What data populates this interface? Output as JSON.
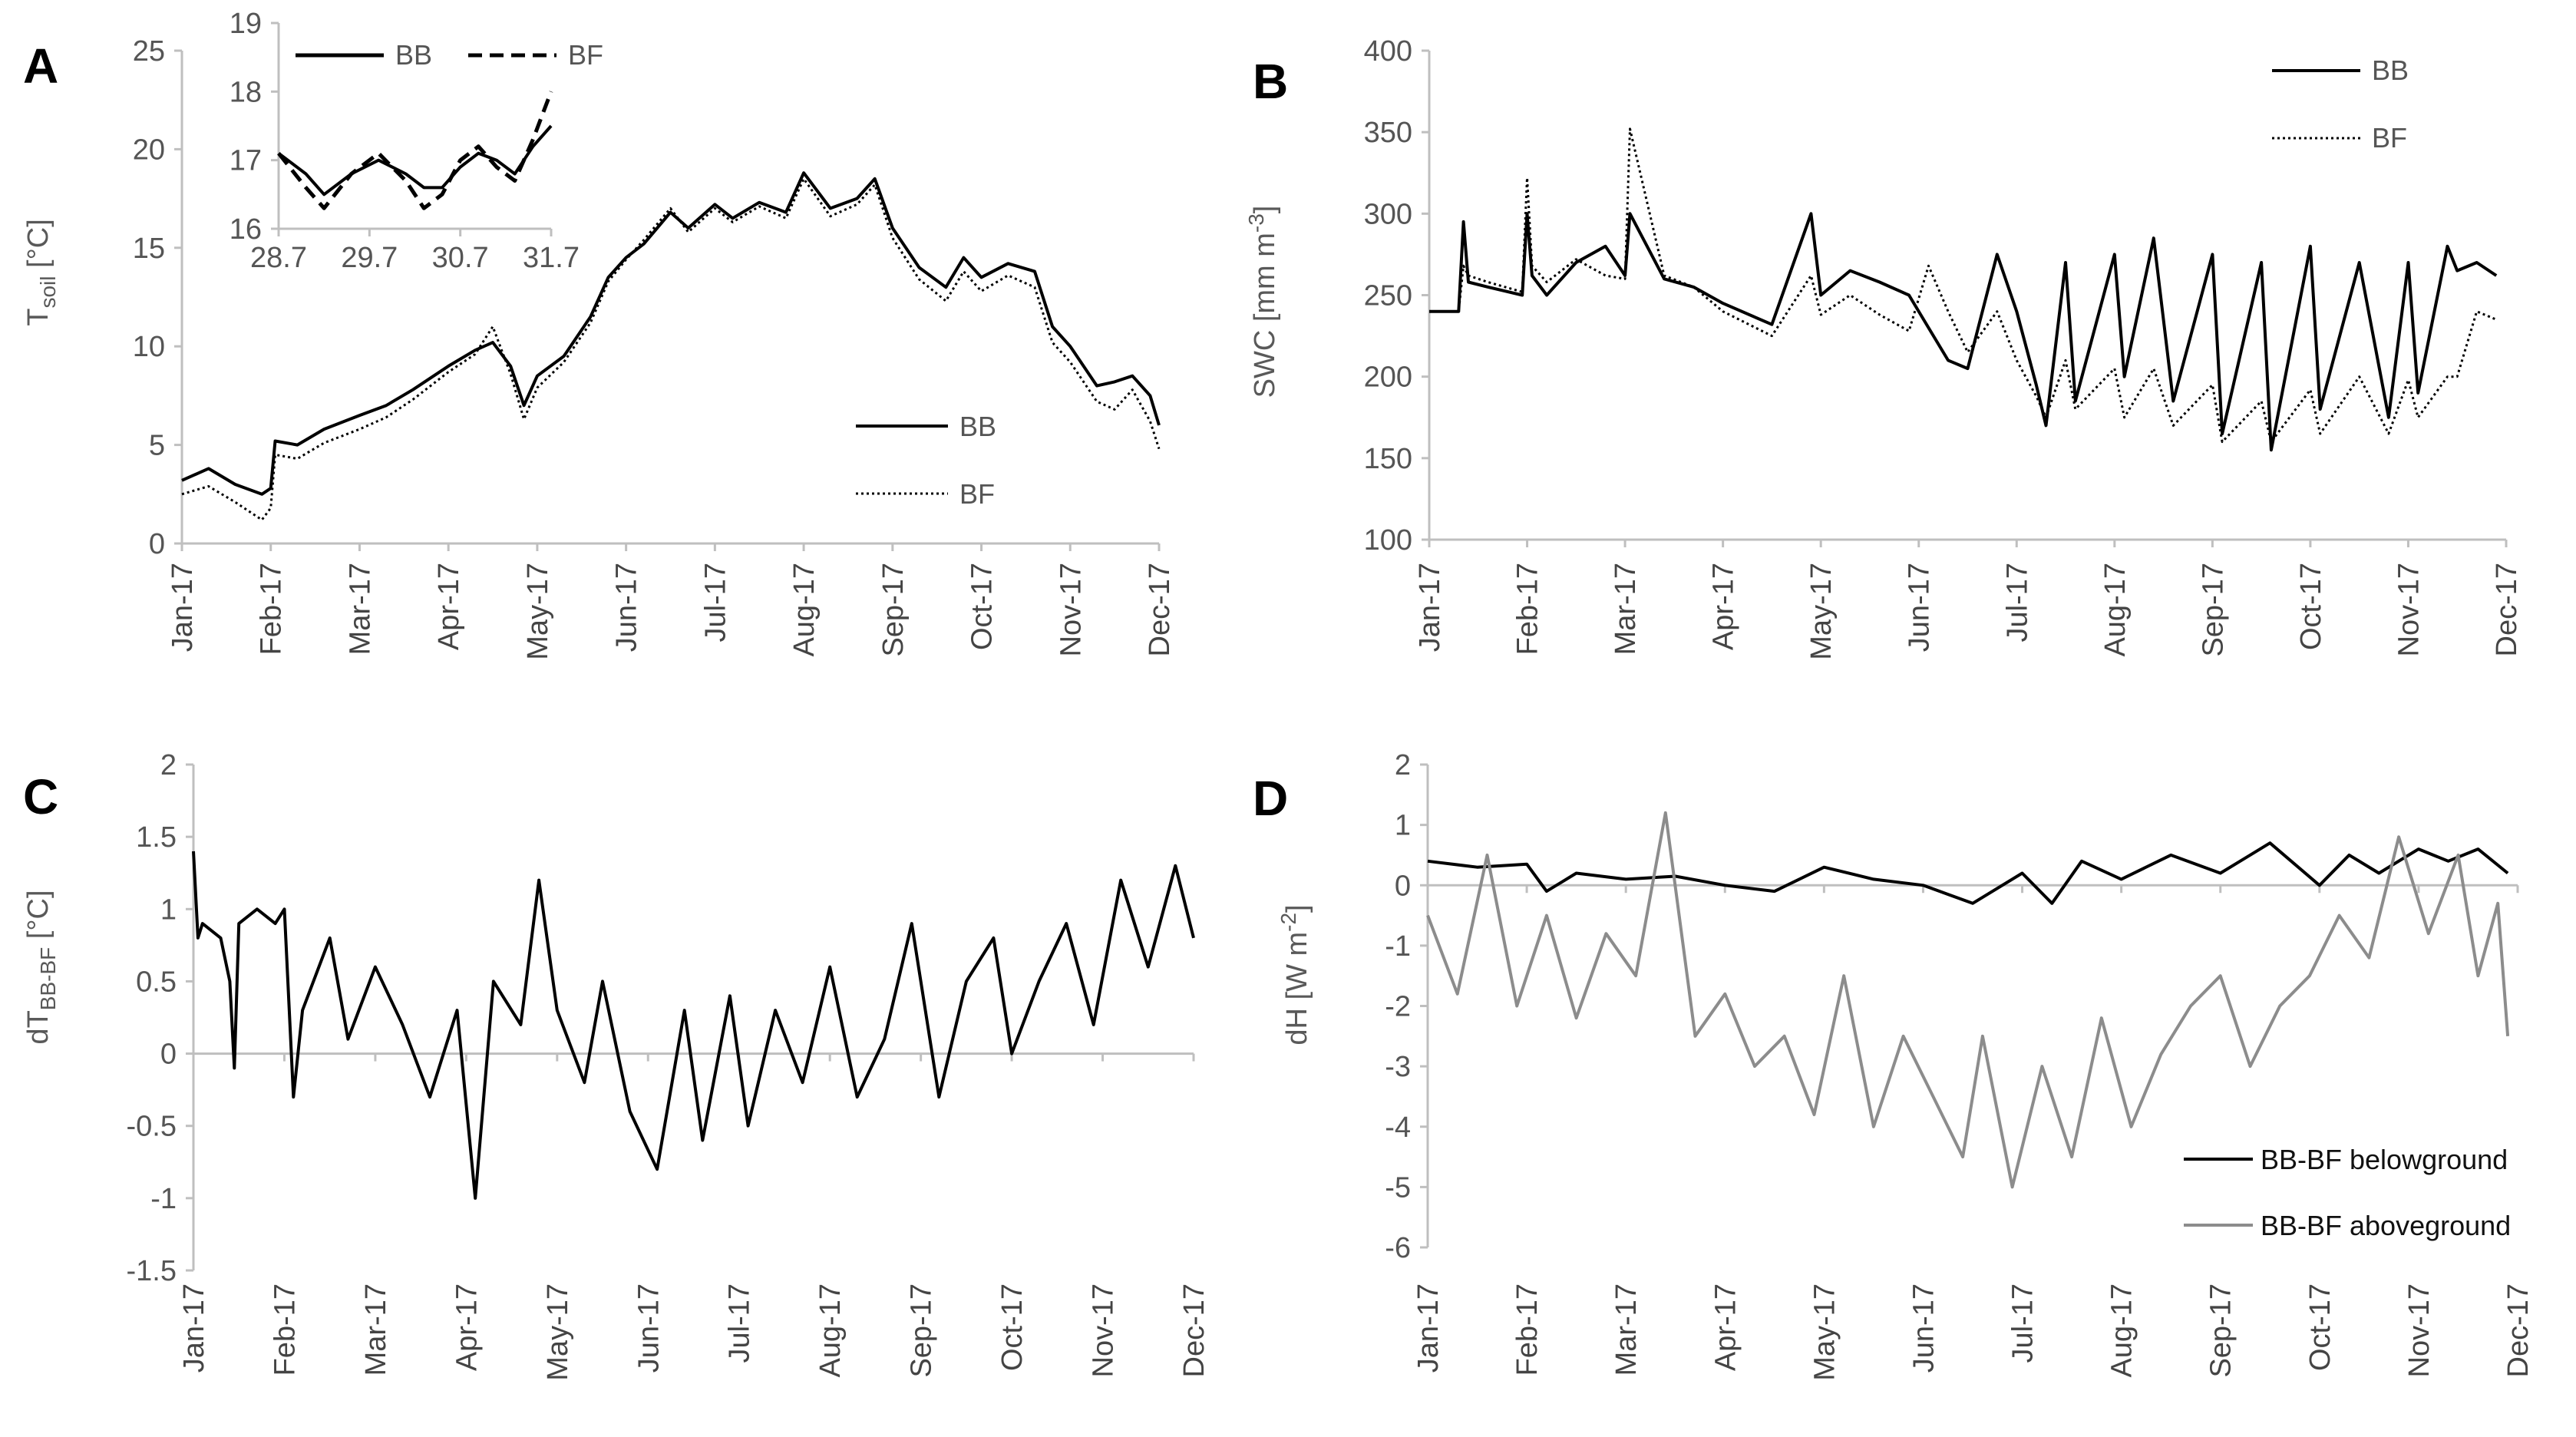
{
  "figure": {
    "panels": [
      "A",
      "B",
      "C",
      "D"
    ]
  },
  "chart_data": [
    {
      "panel": "A",
      "type": "line",
      "title": "",
      "xlabel": "",
      "ylabel_main": "T",
      "ylabel_sub": "soil",
      "ylabel_unit": " [°C]",
      "x_tick_labels": [
        "Jan-17",
        "Feb-17",
        "Mar-17",
        "Apr-17",
        "May-17",
        "Jun-17",
        "Jul-17",
        "Aug-17",
        "Sep-17",
        "Oct-17",
        "Nov-17",
        "Dec-17"
      ],
      "yticks": [
        0,
        5,
        10,
        15,
        20,
        25
      ],
      "ylim": [
        0,
        25
      ],
      "xlim": [
        0,
        11
      ],
      "legend": [
        "BB",
        "BF"
      ],
      "legend_position": "lower-right",
      "series": [
        {
          "name": "BB",
          "style": "solid",
          "x": [
            0,
            0.3,
            0.6,
            0.9,
            1.0,
            1.05,
            1.3,
            1.6,
            2.0,
            2.3,
            2.6,
            3.0,
            3.3,
            3.5,
            3.7,
            3.85,
            4.0,
            4.3,
            4.6,
            4.8,
            5.0,
            5.2,
            5.5,
            5.7,
            6.0,
            6.2,
            6.5,
            6.8,
            7.0,
            7.3,
            7.6,
            7.8,
            8.0,
            8.3,
            8.6,
            8.8,
            9.0,
            9.3,
            9.6,
            9.8,
            10.0,
            10.3,
            10.5,
            10.7,
            10.9,
            11.0
          ],
          "values": [
            3.2,
            3.8,
            3.0,
            2.5,
            2.8,
            5.2,
            5.0,
            5.8,
            6.5,
            7.0,
            7.8,
            9.0,
            9.8,
            10.2,
            9.0,
            7.0,
            8.5,
            9.5,
            11.5,
            13.5,
            14.5,
            15.2,
            16.8,
            16.0,
            17.2,
            16.5,
            17.3,
            16.8,
            18.8,
            17.0,
            17.5,
            18.5,
            16.0,
            14.0,
            13.0,
            14.5,
            13.5,
            14.2,
            13.8,
            11.0,
            10.0,
            8.0,
            8.2,
            8.5,
            7.5,
            6.0
          ]
        },
        {
          "name": "BF",
          "style": "dotted",
          "x": [
            0,
            0.3,
            0.6,
            0.9,
            1.0,
            1.05,
            1.3,
            1.6,
            2.0,
            2.3,
            2.6,
            3.0,
            3.3,
            3.5,
            3.7,
            3.85,
            4.0,
            4.3,
            4.6,
            4.8,
            5.0,
            5.2,
            5.5,
            5.7,
            6.0,
            6.2,
            6.5,
            6.8,
            7.0,
            7.3,
            7.6,
            7.8,
            8.0,
            8.3,
            8.6,
            8.8,
            9.0,
            9.3,
            9.6,
            9.8,
            10.0,
            10.3,
            10.5,
            10.7,
            10.9,
            11.0
          ],
          "values": [
            2.5,
            2.9,
            2.1,
            1.2,
            1.8,
            4.5,
            4.3,
            5.1,
            5.8,
            6.4,
            7.3,
            8.7,
            9.6,
            11.0,
            8.6,
            6.3,
            7.9,
            9.2,
            11.2,
            13.3,
            14.4,
            15.4,
            17.0,
            15.8,
            17.0,
            16.3,
            17.1,
            16.5,
            18.5,
            16.6,
            17.2,
            18.2,
            15.5,
            13.4,
            12.3,
            13.8,
            12.8,
            13.6,
            13.0,
            10.2,
            9.2,
            7.2,
            6.8,
            7.8,
            6.2,
            4.8
          ]
        }
      ],
      "inset": {
        "type": "line",
        "x_tick_labels": [
          "28.7",
          "29.7",
          "30.7",
          "31.7"
        ],
        "yticks": [
          16,
          17,
          18,
          19
        ],
        "ylim": [
          16,
          19
        ],
        "xlim": [
          28.7,
          31.7
        ],
        "legend": [
          "BB",
          "BF"
        ],
        "series": [
          {
            "name": "BB",
            "style": "solid",
            "x": [
              28.7,
              29.0,
              29.2,
              29.5,
              29.8,
              30.1,
              30.3,
              30.5,
              30.7,
              30.9,
              31.1,
              31.3,
              31.5,
              31.7
            ],
            "values": [
              17.1,
              16.8,
              16.5,
              16.8,
              17.0,
              16.8,
              16.6,
              16.6,
              16.9,
              17.1,
              17.0,
              16.8,
              17.2,
              17.5
            ]
          },
          {
            "name": "BF",
            "style": "dashed",
            "x": [
              28.7,
              29.0,
              29.2,
              29.5,
              29.8,
              30.1,
              30.3,
              30.5,
              30.7,
              30.9,
              31.1,
              31.3,
              31.5,
              31.7
            ],
            "values": [
              17.1,
              16.6,
              16.3,
              16.8,
              17.1,
              16.7,
              16.3,
              16.5,
              17.0,
              17.2,
              16.9,
              16.7,
              17.3,
              18.0
            ]
          }
        ]
      }
    },
    {
      "panel": "B",
      "type": "line",
      "title": "",
      "xlabel": "",
      "ylabel_main": "SWC [mm m",
      "ylabel_sup": "-3",
      "ylabel_tail": "]",
      "x_tick_labels": [
        "Jan-17",
        "Feb-17",
        "Mar-17",
        "Apr-17",
        "May-17",
        "Jun-17",
        "Jul-17",
        "Aug-17",
        "Sep-17",
        "Oct-17",
        "Nov-17",
        "Dec-17"
      ],
      "yticks": [
        100,
        150,
        200,
        250,
        300,
        350,
        400
      ],
      "ylim": [
        100,
        400
      ],
      "xlim": [
        0,
        11
      ],
      "legend": [
        "BB",
        "BF"
      ],
      "legend_position": "top-right",
      "series": [
        {
          "name": "BB",
          "style": "solid",
          "x": [
            0,
            0.3,
            0.35,
            0.4,
            0.6,
            0.95,
            1.0,
            1.05,
            1.2,
            1.5,
            1.8,
            2.0,
            2.05,
            2.4,
            2.7,
            3.0,
            3.5,
            3.9,
            4.0,
            4.3,
            4.6,
            4.9,
            5.1,
            5.3,
            5.5,
            5.8,
            6.0,
            6.2,
            6.3,
            6.5,
            6.6,
            7.0,
            7.1,
            7.4,
            7.6,
            8.0,
            8.1,
            8.5,
            8.6,
            9.0,
            9.1,
            9.5,
            9.8,
            10.0,
            10.1,
            10.4,
            10.5,
            10.7,
            10.9
          ],
          "values": [
            240,
            240,
            295,
            258,
            255,
            250,
            300,
            262,
            250,
            270,
            280,
            262,
            300,
            260,
            255,
            245,
            232,
            300,
            250,
            265,
            258,
            250,
            230,
            210,
            205,
            275,
            240,
            195,
            170,
            270,
            185,
            275,
            200,
            285,
            185,
            275,
            165,
            270,
            155,
            280,
            180,
            270,
            175,
            270,
            190,
            280,
            265,
            270,
            262
          ]
        },
        {
          "name": "BF",
          "style": "dotted",
          "x": [
            0,
            0.3,
            0.35,
            0.4,
            0.6,
            0.95,
            1.0,
            1.05,
            1.2,
            1.5,
            1.8,
            2.0,
            2.05,
            2.4,
            2.7,
            3.0,
            3.5,
            3.9,
            4.0,
            4.3,
            4.6,
            4.9,
            5.1,
            5.3,
            5.5,
            5.8,
            6.0,
            6.2,
            6.3,
            6.5,
            6.6,
            7.0,
            7.1,
            7.4,
            7.6,
            8.0,
            8.1,
            8.5,
            8.6,
            9.0,
            9.1,
            9.5,
            9.8,
            10.0,
            10.1,
            10.4,
            10.5,
            10.7,
            10.9
          ],
          "values": [
            240,
            240,
            268,
            262,
            258,
            252,
            322,
            268,
            258,
            272,
            262,
            260,
            352,
            262,
            255,
            240,
            225,
            262,
            238,
            250,
            238,
            228,
            268,
            240,
            215,
            240,
            210,
            188,
            175,
            210,
            180,
            205,
            175,
            205,
            170,
            195,
            160,
            185,
            160,
            192,
            165,
            200,
            165,
            198,
            175,
            200,
            200,
            240,
            235
          ]
        }
      ]
    },
    {
      "panel": "C",
      "type": "line",
      "title": "",
      "xlabel": "",
      "ylabel_main": "dT",
      "ylabel_sub": "BB-BF",
      "ylabel_unit": " [°C]",
      "x_tick_labels": [
        "Jan-17",
        "Feb-17",
        "Mar-17",
        "Apr-17",
        "May-17",
        "Jun-17",
        "Jul-17",
        "Aug-17",
        "Sep-17",
        "Oct-17",
        "Nov-17",
        "Dec-17"
      ],
      "yticks": [
        -1.5,
        -1,
        -0.5,
        0,
        0.5,
        1,
        1.5,
        2
      ],
      "ylim": [
        -1.5,
        2
      ],
      "xlim": [
        0,
        11
      ],
      "series": [
        {
          "name": "dT",
          "style": "solid",
          "x": [
            0,
            0.05,
            0.1,
            0.3,
            0.4,
            0.45,
            0.5,
            0.7,
            0.9,
            1.0,
            1.1,
            1.2,
            1.5,
            1.7,
            2.0,
            2.3,
            2.6,
            2.9,
            3.1,
            3.3,
            3.6,
            3.8,
            4.0,
            4.3,
            4.5,
            4.8,
            5.1,
            5.4,
            5.6,
            5.9,
            6.1,
            6.4,
            6.7,
            7.0,
            7.3,
            7.6,
            7.9,
            8.2,
            8.5,
            8.8,
            9.0,
            9.3,
            9.6,
            9.9,
            10.2,
            10.5,
            10.8,
            11.0
          ],
          "values": [
            1.4,
            0.8,
            0.9,
            0.8,
            0.5,
            -0.1,
            0.9,
            1.0,
            0.9,
            1.0,
            -0.3,
            0.3,
            0.8,
            0.1,
            0.6,
            0.2,
            -0.3,
            0.3,
            -1.0,
            0.5,
            0.2,
            1.2,
            0.3,
            -0.2,
            0.5,
            -0.4,
            -0.8,
            0.3,
            -0.6,
            0.4,
            -0.5,
            0.3,
            -0.2,
            0.6,
            -0.3,
            0.1,
            0.9,
            -0.3,
            0.5,
            0.8,
            0.0,
            0.5,
            0.9,
            0.2,
            1.2,
            0.6,
            1.3,
            0.8
          ]
        }
      ]
    },
    {
      "panel": "D",
      "type": "line",
      "title": "",
      "xlabel": "",
      "ylabel_main": "dH [W m",
      "ylabel_sup": "-2",
      "ylabel_tail": "]",
      "x_tick_labels": [
        "Jan-17",
        "Feb-17",
        "Mar-17",
        "Apr-17",
        "May-17",
        "Jun-17",
        "Jul-17",
        "Aug-17",
        "Sep-17",
        "Oct-17",
        "Nov-17",
        "Dec-17"
      ],
      "yticks": [
        -6,
        -5,
        -4,
        -3,
        -2,
        -1,
        0,
        1,
        2
      ],
      "ylim": [
        -6,
        2
      ],
      "xlim": [
        0,
        11
      ],
      "legend": [
        "BB-BF belowground",
        "BB-BF aboveground"
      ],
      "legend_position": "lower-right",
      "series": [
        {
          "name": "BB-BF belowground",
          "style": "solid-black",
          "x": [
            0,
            0.5,
            1.0,
            1.2,
            1.5,
            2.0,
            2.5,
            3.0,
            3.5,
            4.0,
            4.5,
            5.0,
            5.5,
            6.0,
            6.3,
            6.6,
            7.0,
            7.5,
            8.0,
            8.5,
            9.0,
            9.3,
            9.6,
            10.0,
            10.3,
            10.6,
            10.9
          ],
          "values": [
            0.4,
            0.3,
            0.35,
            -0.1,
            0.2,
            0.1,
            0.15,
            0.0,
            -0.1,
            0.3,
            0.1,
            0.0,
            -0.3,
            0.2,
            -0.3,
            0.4,
            0.1,
            0.5,
            0.2,
            0.7,
            0.0,
            0.5,
            0.2,
            0.6,
            0.4,
            0.6,
            0.2
          ]
        },
        {
          "name": "BB-BF aboveground",
          "style": "solid-gray",
          "x": [
            0,
            0.3,
            0.6,
            0.9,
            1.2,
            1.5,
            1.8,
            2.1,
            2.4,
            2.7,
            3.0,
            3.3,
            3.6,
            3.9,
            4.2,
            4.5,
            4.8,
            5.1,
            5.4,
            5.6,
            5.9,
            6.2,
            6.5,
            6.8,
            7.1,
            7.4,
            7.7,
            8.0,
            8.3,
            8.6,
            8.9,
            9.2,
            9.5,
            9.8,
            10.1,
            10.4,
            10.6,
            10.8,
            10.9
          ],
          "values": [
            -0.5,
            -1.8,
            0.5,
            -2.0,
            -0.5,
            -2.2,
            -0.8,
            -1.5,
            1.2,
            -2.5,
            -1.8,
            -3.0,
            -2.5,
            -3.8,
            -1.5,
            -4.0,
            -2.5,
            -3.5,
            -4.5,
            -2.5,
            -5.0,
            -3.0,
            -4.5,
            -2.2,
            -4.0,
            -2.8,
            -2.0,
            -1.5,
            -3.0,
            -2.0,
            -1.5,
            -0.5,
            -1.2,
            0.8,
            -0.8,
            0.5,
            -1.5,
            -0.3,
            -2.5
          ]
        }
      ]
    }
  ]
}
